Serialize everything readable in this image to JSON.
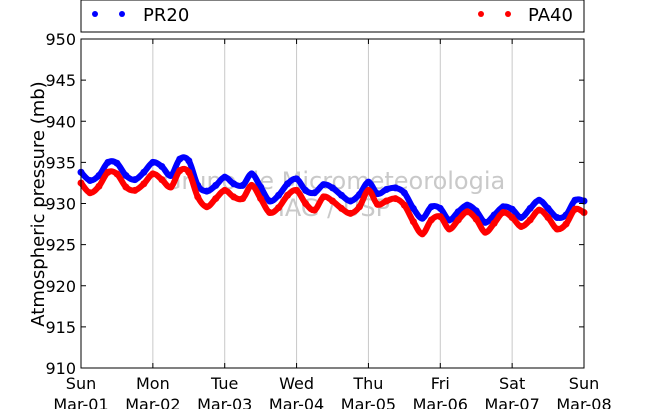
{
  "chart_data": {
    "type": "scatter",
    "ylabel": "Atmospheric pressure (mb)",
    "xlabel": "",
    "ylim": [
      910,
      950
    ],
    "yticks": [
      910,
      915,
      920,
      925,
      930,
      935,
      940,
      945,
      950
    ],
    "xlim": [
      "2014-03-01",
      "2014-03-08"
    ],
    "xticks": [
      {
        "day": "Sun",
        "date": "Mar-01"
      },
      {
        "day": "Mon",
        "date": "Mar-02"
      },
      {
        "day": "Tue",
        "date": "Mar-03"
      },
      {
        "day": "Wed",
        "date": "Mar-04"
      },
      {
        "day": "Thu",
        "date": "Mar-05"
      },
      {
        "day": "Fri",
        "date": "Mar-06"
      },
      {
        "day": "Sat",
        "date": "Mar-07"
      },
      {
        "day": "Sun",
        "date": "Mar-08"
      }
    ],
    "grid": "vertical",
    "legend_position": "top",
    "watermark": [
      "Grupo de Micrometeorologia",
      "IAG / USP"
    ],
    "series": [
      {
        "name": "PR20",
        "color": "#0000ff",
        "x": [
          "2014-03-01 00:00",
          "2014-03-01 03:00",
          "2014-03-01 06:00",
          "2014-03-01 09:00",
          "2014-03-01 12:00",
          "2014-03-01 15:00",
          "2014-03-01 18:00",
          "2014-03-01 21:00",
          "2014-03-02 00:00",
          "2014-03-02 03:00",
          "2014-03-02 06:00",
          "2014-03-02 09:00",
          "2014-03-02 12:00",
          "2014-03-02 15:00",
          "2014-03-02 18:00",
          "2014-03-02 21:00",
          "2014-03-03 00:00",
          "2014-03-03 03:00",
          "2014-03-03 06:00",
          "2014-03-03 09:00",
          "2014-03-03 12:00",
          "2014-03-03 15:00",
          "2014-03-03 18:00",
          "2014-03-03 21:00",
          "2014-03-04 00:00",
          "2014-03-04 03:00",
          "2014-03-04 06:00",
          "2014-03-04 09:00",
          "2014-03-04 12:00",
          "2014-03-04 15:00",
          "2014-03-04 18:00",
          "2014-03-04 21:00",
          "2014-03-05 00:00",
          "2014-03-05 03:00",
          "2014-03-05 06:00",
          "2014-03-05 09:00",
          "2014-03-05 12:00",
          "2014-03-05 15:00",
          "2014-03-05 18:00",
          "2014-03-05 21:00",
          "2014-03-06 00:00",
          "2014-03-06 03:00",
          "2014-03-06 06:00",
          "2014-03-06 09:00",
          "2014-03-06 12:00",
          "2014-03-06 15:00",
          "2014-03-06 18:00",
          "2014-03-06 21:00",
          "2014-03-07 00:00",
          "2014-03-07 03:00",
          "2014-03-07 06:00",
          "2014-03-07 09:00",
          "2014-03-07 12:00",
          "2014-03-07 15:00",
          "2014-03-07 18:00",
          "2014-03-07 21:00",
          "2014-03-08 00:00"
        ],
        "values": [
          933.8,
          932.8,
          933.4,
          935.0,
          934.9,
          933.4,
          932.9,
          933.8,
          935.0,
          934.5,
          933.4,
          935.4,
          935.2,
          932.2,
          931.5,
          932.2,
          933.2,
          932.4,
          932.2,
          933.6,
          932.0,
          930.3,
          931.0,
          932.4,
          933.0,
          931.6,
          931.3,
          932.3,
          931.9,
          931.0,
          930.3,
          931.1,
          932.6,
          931.2,
          931.7,
          931.9,
          931.3,
          929.4,
          928.2,
          929.6,
          929.4,
          928.0,
          929.0,
          929.8,
          929.1,
          927.7,
          928.6,
          929.6,
          929.3,
          928.3,
          929.4,
          930.4,
          929.4,
          928.3,
          928.6,
          930.4,
          930.3
        ]
      },
      {
        "name": "PA40",
        "color": "#ff0000",
        "x": [
          "2014-03-01 00:00",
          "2014-03-01 03:00",
          "2014-03-01 06:00",
          "2014-03-01 09:00",
          "2014-03-01 12:00",
          "2014-03-01 15:00",
          "2014-03-01 18:00",
          "2014-03-01 21:00",
          "2014-03-02 00:00",
          "2014-03-02 03:00",
          "2014-03-02 06:00",
          "2014-03-02 09:00",
          "2014-03-02 12:00",
          "2014-03-02 15:00",
          "2014-03-02 18:00",
          "2014-03-02 21:00",
          "2014-03-03 00:00",
          "2014-03-03 03:00",
          "2014-03-03 06:00",
          "2014-03-03 09:00",
          "2014-03-03 12:00",
          "2014-03-03 15:00",
          "2014-03-03 18:00",
          "2014-03-03 21:00",
          "2014-03-04 00:00",
          "2014-03-04 03:00",
          "2014-03-04 06:00",
          "2014-03-04 09:00",
          "2014-03-04 12:00",
          "2014-03-04 15:00",
          "2014-03-04 18:00",
          "2014-03-04 21:00",
          "2014-03-05 00:00",
          "2014-03-05 03:00",
          "2014-03-05 06:00",
          "2014-03-05 09:00",
          "2014-03-05 12:00",
          "2014-03-05 15:00",
          "2014-03-05 18:00",
          "2014-03-05 21:00",
          "2014-03-06 00:00",
          "2014-03-06 03:00",
          "2014-03-06 06:00",
          "2014-03-06 09:00",
          "2014-03-06 12:00",
          "2014-03-06 15:00",
          "2014-03-06 18:00",
          "2014-03-06 21:00",
          "2014-03-07 00:00",
          "2014-03-07 03:00",
          "2014-03-07 06:00",
          "2014-03-07 09:00",
          "2014-03-07 12:00",
          "2014-03-07 15:00",
          "2014-03-07 18:00",
          "2014-03-07 21:00",
          "2014-03-08 00:00"
        ],
        "values": [
          932.5,
          931.3,
          932.1,
          933.8,
          933.6,
          932.0,
          931.6,
          932.4,
          933.6,
          932.9,
          932.0,
          934.0,
          933.8,
          930.8,
          929.6,
          930.6,
          931.6,
          930.8,
          930.6,
          932.2,
          930.6,
          928.9,
          929.5,
          931.0,
          931.6,
          930.0,
          929.2,
          930.8,
          930.3,
          929.4,
          928.8,
          929.6,
          931.6,
          929.9,
          930.3,
          930.6,
          929.8,
          927.8,
          926.3,
          928.0,
          928.4,
          926.9,
          928.0,
          929.0,
          928.1,
          926.5,
          927.6,
          928.9,
          928.3,
          927.2,
          928.0,
          929.2,
          928.3,
          926.9,
          927.5,
          929.3,
          928.9
        ]
      }
    ]
  }
}
